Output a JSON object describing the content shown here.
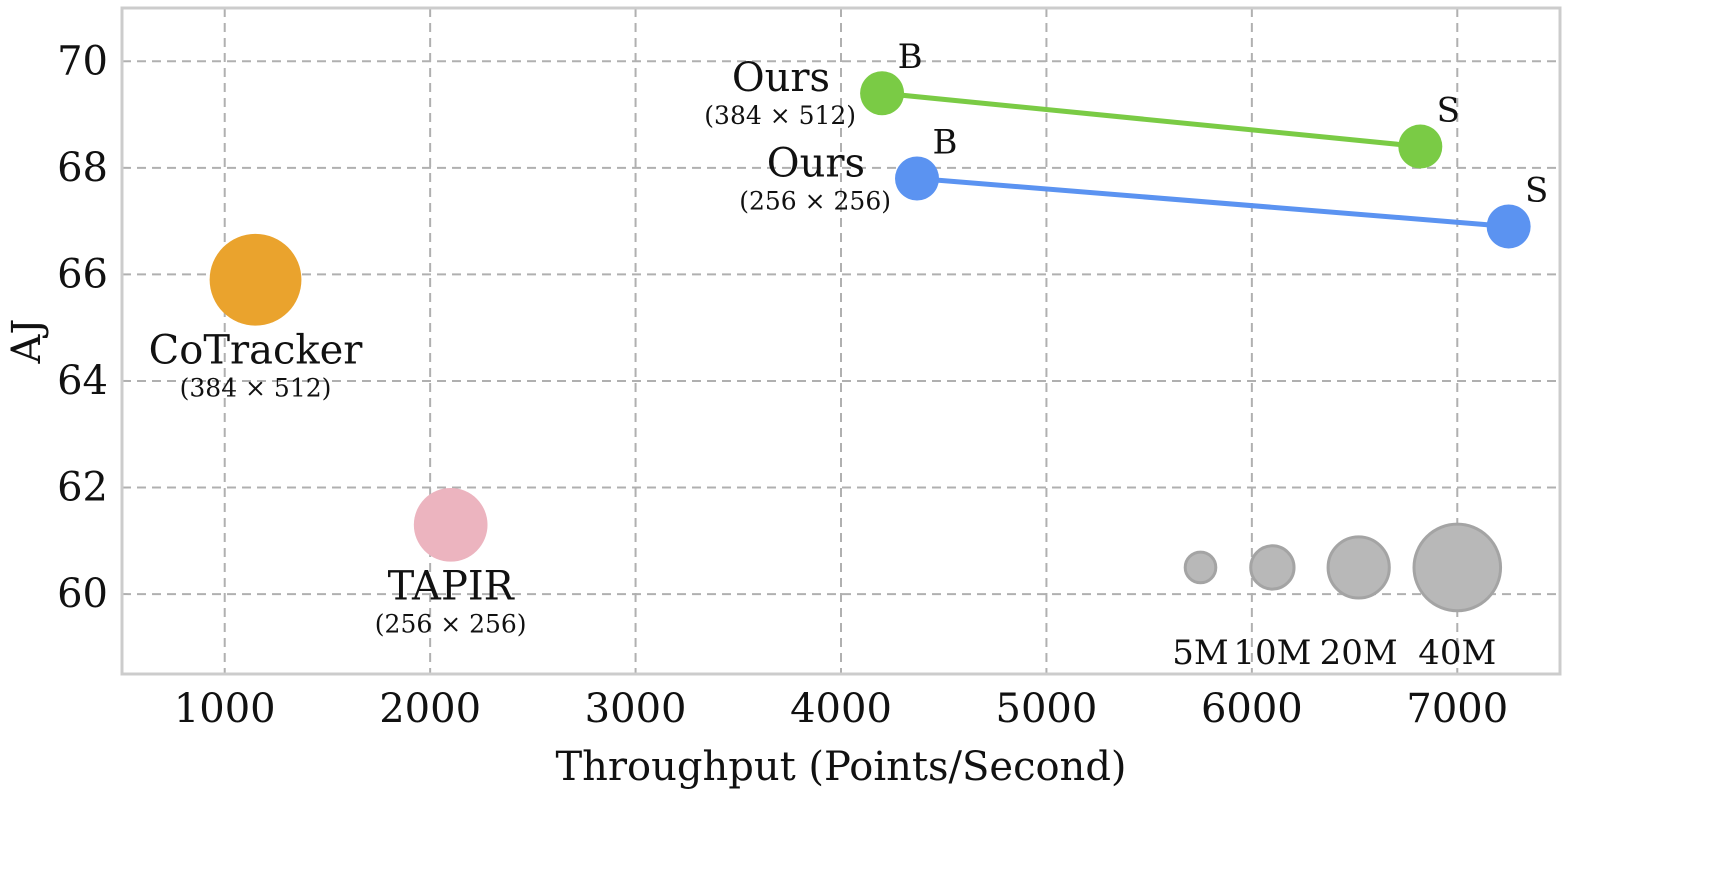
{
  "chart_data": {
    "type": "scatter",
    "title": "",
    "xlabel": "Throughput (Points/Second)",
    "ylabel": "AJ",
    "xlim": [
      500,
      7500
    ],
    "ylim": [
      58.5,
      71
    ],
    "xticks": [
      1000,
      2000,
      3000,
      4000,
      5000,
      6000,
      7000
    ],
    "yticks": [
      60,
      62,
      64,
      66,
      68,
      70
    ],
    "grid": true,
    "series": [
      {
        "name": "Ours",
        "resolution": "(384 × 512)",
        "color": "#7acb45",
        "connected": true,
        "points": [
          {
            "label": "B",
            "x": 4200,
            "y": 69.4
          },
          {
            "label": "S",
            "x": 6820,
            "y": 68.4
          }
        ]
      },
      {
        "name": "Ours",
        "resolution": "(256 × 256)",
        "color": "#5b93f1",
        "connected": true,
        "points": [
          {
            "label": "B",
            "x": 4370,
            "y": 67.8
          },
          {
            "label": "S",
            "x": 7250,
            "y": 66.9
          }
        ]
      },
      {
        "name": "CoTracker",
        "resolution": "(384 × 512)",
        "color": "#eaa32d",
        "connected": false,
        "points": [
          {
            "label": "",
            "x": 1150,
            "y": 65.9,
            "params_m": 45
          }
        ]
      },
      {
        "name": "TAPIR",
        "resolution": "(256 × 256)",
        "color": "#ecb4bf",
        "connected": false,
        "points": [
          {
            "label": "",
            "x": 2100,
            "y": 61.3,
            "params_m": 29
          }
        ]
      }
    ],
    "size_legend": {
      "color": "#b8b8b8",
      "y": 60.5,
      "items": [
        {
          "label": "5M",
          "x": 5750,
          "params_m": 5
        },
        {
          "label": "10M",
          "x": 6100,
          "params_m": 10
        },
        {
          "label": "20M",
          "x": 6520,
          "params_m": 20
        },
        {
          "label": "40M",
          "x": 7000,
          "params_m": 40
        }
      ]
    }
  }
}
